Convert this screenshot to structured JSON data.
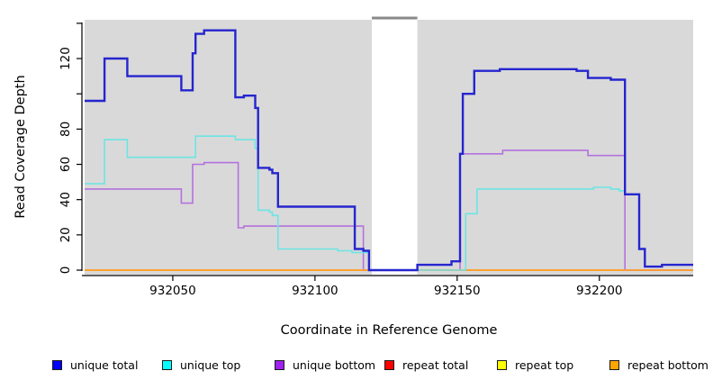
{
  "chart_data": {
    "type": "line",
    "subtype": "step-after",
    "title": "",
    "xlabel": "Coordinate in Reference Genome",
    "ylabel": "Read Coverage Depth",
    "xlim": [
      932019,
      932233
    ],
    "ylim": [
      0,
      142
    ],
    "x_ticks": [
      932050,
      932100,
      932150,
      932200
    ],
    "x_tick_labels": [
      "932050",
      "932100",
      "932150",
      "932200"
    ],
    "y_ticks": [
      0,
      20,
      40,
      60,
      80,
      100,
      120,
      140
    ],
    "y_tick_labels": [
      "0",
      "20",
      "40",
      "60",
      "80",
      "",
      "120",
      ""
    ],
    "grid": false,
    "plot_bg_color": "#d9d9d9",
    "masked_region": {
      "x_start": 932120,
      "x_end": 932136,
      "color": "#ffffff",
      "cap_color": "#8a8a8a"
    },
    "draw_order": [
      "repeat total",
      "repeat top",
      "unique bottom",
      "repeat bottom",
      "unique top",
      "unique total"
    ],
    "series": [
      {
        "name": "unique total",
        "legend_color": "#0000ff",
        "line_color": "#2525cf",
        "line_width": 2.4,
        "segments": [
          [
            [
              932019,
              96
            ],
            [
              932026,
              120
            ],
            [
              932034,
              110
            ],
            [
              932053,
              102
            ],
            [
              932057,
              123
            ],
            [
              932058,
              134
            ],
            [
              932061,
              136
            ],
            [
              932072,
              98
            ],
            [
              932075,
              99
            ],
            [
              932079,
              92
            ],
            [
              932080,
              58
            ],
            [
              932084,
              57
            ],
            [
              932085,
              55
            ],
            [
              932087,
              36
            ],
            [
              932114,
              12
            ],
            [
              932117,
              11
            ],
            [
              932119,
              0
            ],
            [
              932136,
              3
            ],
            [
              932148,
              5
            ],
            [
              932151,
              66
            ],
            [
              932152,
              100
            ],
            [
              932156,
              113
            ],
            [
              932165,
              114
            ],
            [
              932192,
              113
            ],
            [
              932196,
              109
            ],
            [
              932204,
              108
            ],
            [
              932209,
              43
            ],
            [
              932214,
              12
            ],
            [
              932216,
              2
            ],
            [
              932222,
              3
            ]
          ]
        ],
        "segment_ends": [
          932233
        ]
      },
      {
        "name": "unique top",
        "legend_color": "#00ffff",
        "line_color": "#6ee4e4",
        "line_width": 1.6,
        "segments": [
          [
            [
              932019,
              49
            ],
            [
              932026,
              74
            ],
            [
              932034,
              64
            ],
            [
              932058,
              76
            ],
            [
              932072,
              74
            ],
            [
              932079,
              69
            ],
            [
              932080,
              34
            ],
            [
              932084,
              33
            ],
            [
              932085,
              31
            ],
            [
              932087,
              12
            ],
            [
              932108,
              11
            ],
            [
              932113,
              10
            ],
            [
              932119,
              0
            ],
            [
              932153,
              32
            ],
            [
              932157,
              46
            ],
            [
              932198,
              47
            ],
            [
              932204,
              46
            ],
            [
              932207,
              45
            ],
            [
              932209,
              43
            ],
            [
              932214,
              12
            ],
            [
              932216,
              2
            ],
            [
              932222,
              3
            ]
          ]
        ],
        "segment_ends": [
          932233
        ]
      },
      {
        "name": "unique bottom",
        "legend_color": "#a020f0",
        "line_color": "#b472dd",
        "line_width": 1.6,
        "segments": [
          [
            [
              932019,
              46
            ],
            [
              932053,
              38
            ],
            [
              932057,
              60
            ],
            [
              932061,
              61
            ],
            [
              932073,
              24
            ],
            [
              932075,
              25
            ],
            [
              932117,
              0
            ],
            [
              932151,
              66
            ],
            [
              932166,
              68
            ],
            [
              932196,
              65
            ],
            [
              932209,
              0
            ]
          ]
        ],
        "segment_ends": [
          932233
        ]
      },
      {
        "name": "repeat total",
        "legend_color": "#ff0000",
        "line_color": "#ff0000",
        "line_width": 1.4,
        "segments": [
          [
            [
              932019,
              0
            ]
          ],
          [
            [
              932136,
              0
            ]
          ]
        ],
        "segment_ends": [
          932119,
          932233
        ]
      },
      {
        "name": "repeat top",
        "legend_color": "#ffff00",
        "line_color": "#ffff00",
        "line_width": 1.4,
        "segments": [
          [
            [
              932019,
              0
            ]
          ],
          [
            [
              932136,
              0
            ]
          ]
        ],
        "segment_ends": [
          932119,
          932233
        ]
      },
      {
        "name": "repeat bottom",
        "legend_color": "#ffa500",
        "line_color": "#ff9e2c",
        "line_width": 1.8,
        "segments": [
          [
            [
              932019,
              0
            ]
          ],
          [
            [
              932136,
              0
            ]
          ]
        ],
        "segment_ends": [
          932119,
          932233
        ]
      }
    ],
    "legend": {
      "position": "bottom",
      "entries": [
        {
          "label": "unique total",
          "color": "#0000ff"
        },
        {
          "label": "unique top",
          "color": "#00ffff"
        },
        {
          "label": "unique bottom",
          "color": "#a020f0"
        },
        {
          "label": "repeat total",
          "color": "#ff0000"
        },
        {
          "label": "repeat top",
          "color": "#ffff00"
        },
        {
          "label": "repeat bottom",
          "color": "#ffa500"
        }
      ]
    }
  }
}
